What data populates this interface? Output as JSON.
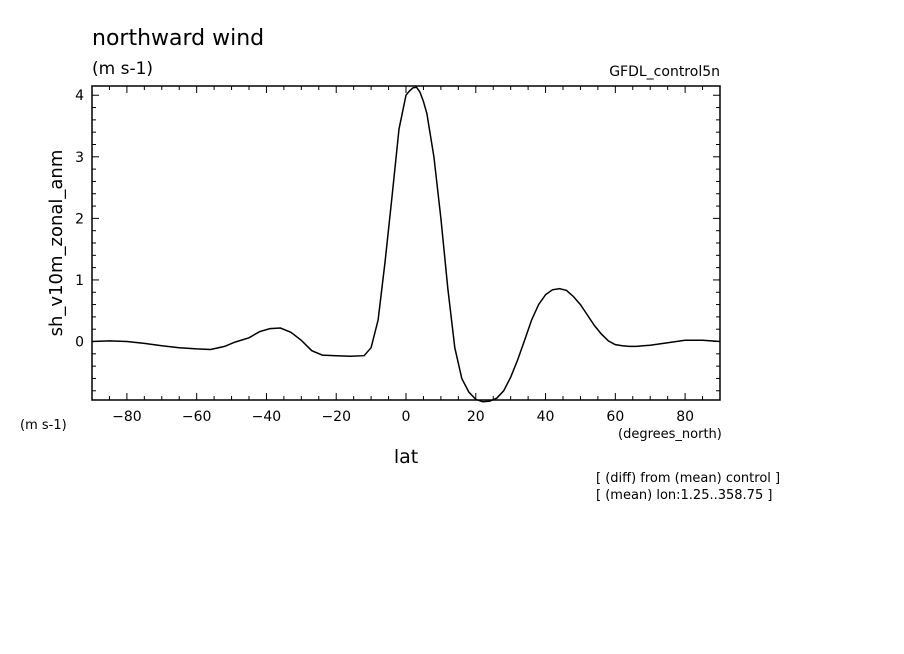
{
  "chart_data": {
    "type": "line",
    "title": "northward wind",
    "units": "(m s-1)",
    "dataset": "GFDL_control5n",
    "ylabel": "sh_v10m_zonal_anm",
    "y_units_label": "(m s-1)",
    "xlabel": "lat",
    "x_units_label": "(degrees_north)",
    "notes": [
      "[ (diff) from (mean) control ]",
      "[ (mean) lon:1.25..358.75 ]"
    ],
    "xlim": [
      -90,
      90
    ],
    "ylim": [
      -0.95,
      4.15
    ],
    "x_ticks": [
      -80,
      -60,
      -40,
      -20,
      0,
      20,
      40,
      60,
      80
    ],
    "y_ticks": [
      0,
      1,
      2,
      3,
      4
    ],
    "grid": false,
    "series": [
      {
        "x": [
          -90,
          -85,
          -80,
          -75,
          -70,
          -65,
          -60,
          -56,
          -52,
          -49,
          -45,
          -42,
          -39,
          -36,
          -33,
          -30,
          -27,
          -24,
          -20,
          -16,
          -12,
          -10,
          -8,
          -6,
          -4,
          -2,
          0,
          1,
          2,
          3,
          4,
          5,
          6,
          7,
          8,
          10,
          12,
          14,
          16,
          18,
          20,
          22,
          24,
          26,
          28,
          30,
          32,
          34,
          36,
          38,
          40,
          42,
          44,
          46,
          48,
          50,
          52,
          54,
          56,
          58,
          60,
          62,
          64,
          66,
          68,
          70,
          75,
          80,
          85,
          90
        ],
        "y": [
          0.0,
          0.01,
          0.0,
          -0.03,
          -0.07,
          -0.1,
          -0.12,
          -0.13,
          -0.08,
          -0.01,
          0.06,
          0.16,
          0.21,
          0.22,
          0.15,
          0.02,
          -0.15,
          -0.22,
          -0.23,
          -0.24,
          -0.23,
          -0.1,
          0.35,
          1.3,
          2.35,
          3.45,
          4.0,
          4.07,
          4.12,
          4.13,
          4.05,
          3.9,
          3.7,
          3.35,
          3.0,
          2.0,
          0.85,
          -0.1,
          -0.6,
          -0.82,
          -0.94,
          -0.98,
          -0.97,
          -0.92,
          -0.8,
          -0.58,
          -0.3,
          0.02,
          0.35,
          0.6,
          0.76,
          0.84,
          0.86,
          0.83,
          0.73,
          0.6,
          0.43,
          0.26,
          0.12,
          0.01,
          -0.05,
          -0.07,
          -0.08,
          -0.08,
          -0.07,
          -0.06,
          -0.02,
          0.02,
          0.02,
          0.0
        ]
      }
    ]
  }
}
